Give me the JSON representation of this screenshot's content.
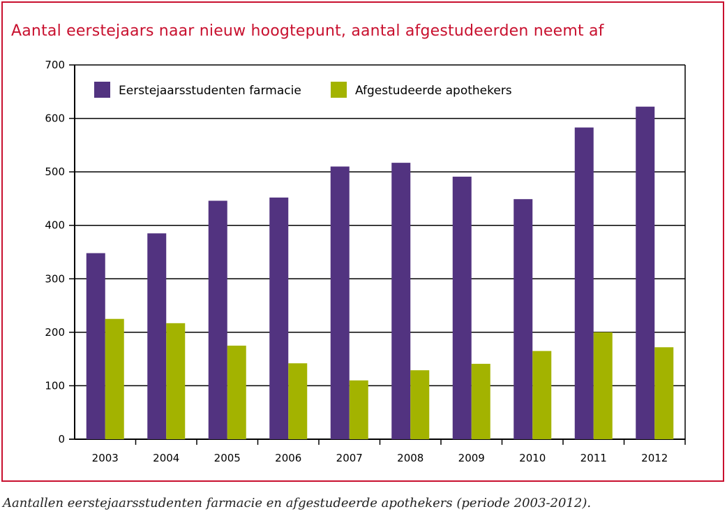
{
  "title": "Aantal eerstejaars naar nieuw hoogtepunt, aantal afgestudeerden neemt af",
  "caption": "Aantallen eerstejaarsstudenten farmacie en afgestudeerde apothekers (periode 2003-2012).",
  "colors": {
    "frame": "#c8102e",
    "title": "#c8102e"
  },
  "chart_data": {
    "type": "bar",
    "title": "",
    "xlabel": "",
    "ylabel": "",
    "ylim": [
      0,
      700
    ],
    "yticks": [
      0,
      100,
      200,
      300,
      400,
      500,
      600,
      700
    ],
    "grid": true,
    "legend_position": "top-left",
    "categories": [
      "2003",
      "2004",
      "2005",
      "2006",
      "2007",
      "2008",
      "2009",
      "2010",
      "2011",
      "2012"
    ],
    "series": [
      {
        "name": "Eerstejaarsstudenten farmacie",
        "color": "#523380",
        "values": [
          348,
          385,
          446,
          452,
          510,
          517,
          491,
          449,
          583,
          622
        ]
      },
      {
        "name": "Afgestudeerde apothekers",
        "color": "#a3b300",
        "values": [
          225,
          217,
          175,
          142,
          110,
          129,
          141,
          165,
          200,
          172
        ]
      }
    ]
  }
}
